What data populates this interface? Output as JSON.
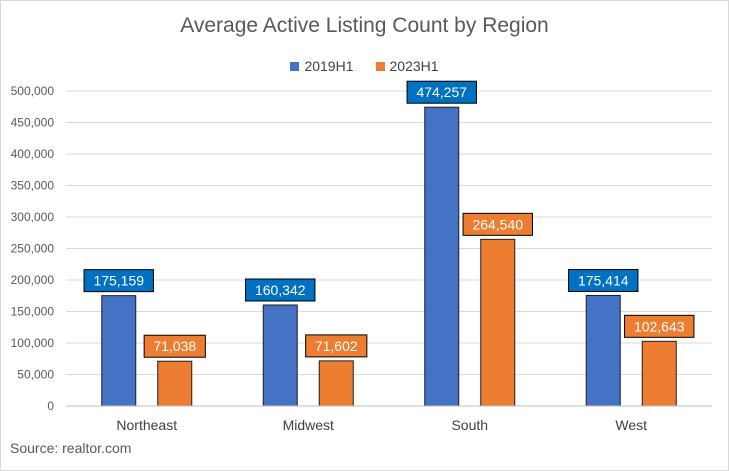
{
  "chart_data": {
    "type": "bar",
    "title": "Average Active Listing Count by Region",
    "categories": [
      "Northeast",
      "Midwest",
      "South",
      "West"
    ],
    "series": [
      {
        "name": "2019H1",
        "values": [
          175159,
          160342,
          474257,
          175414
        ],
        "color": "#4472c4",
        "label_fill": "#0070c0",
        "label_text": "#ffffff"
      },
      {
        "name": "2023H1",
        "values": [
          71038,
          71602,
          264540,
          102643
        ],
        "color": "#ed7d31",
        "label_fill": "#ed7d31",
        "label_text": "#ffffff"
      }
    ],
    "data_labels": [
      [
        "175,159",
        "160,342",
        "474,257",
        "175,414"
      ],
      [
        "71,038",
        "71,602",
        "264,540",
        "102,643"
      ]
    ],
    "y_ticks": [
      0,
      50000,
      100000,
      150000,
      200000,
      250000,
      300000,
      350000,
      400000,
      450000,
      500000
    ],
    "y_tick_labels": [
      "0",
      "50,000",
      "100,000",
      "150,000",
      "200,000",
      "250,000",
      "300,000",
      "350,000",
      "400,000",
      "450,000",
      "500,000"
    ],
    "ylim": [
      0,
      500000
    ],
    "xlabel": "",
    "ylabel": "",
    "grid": true,
    "legend": "top-center"
  },
  "source": "Source: realtor.com"
}
